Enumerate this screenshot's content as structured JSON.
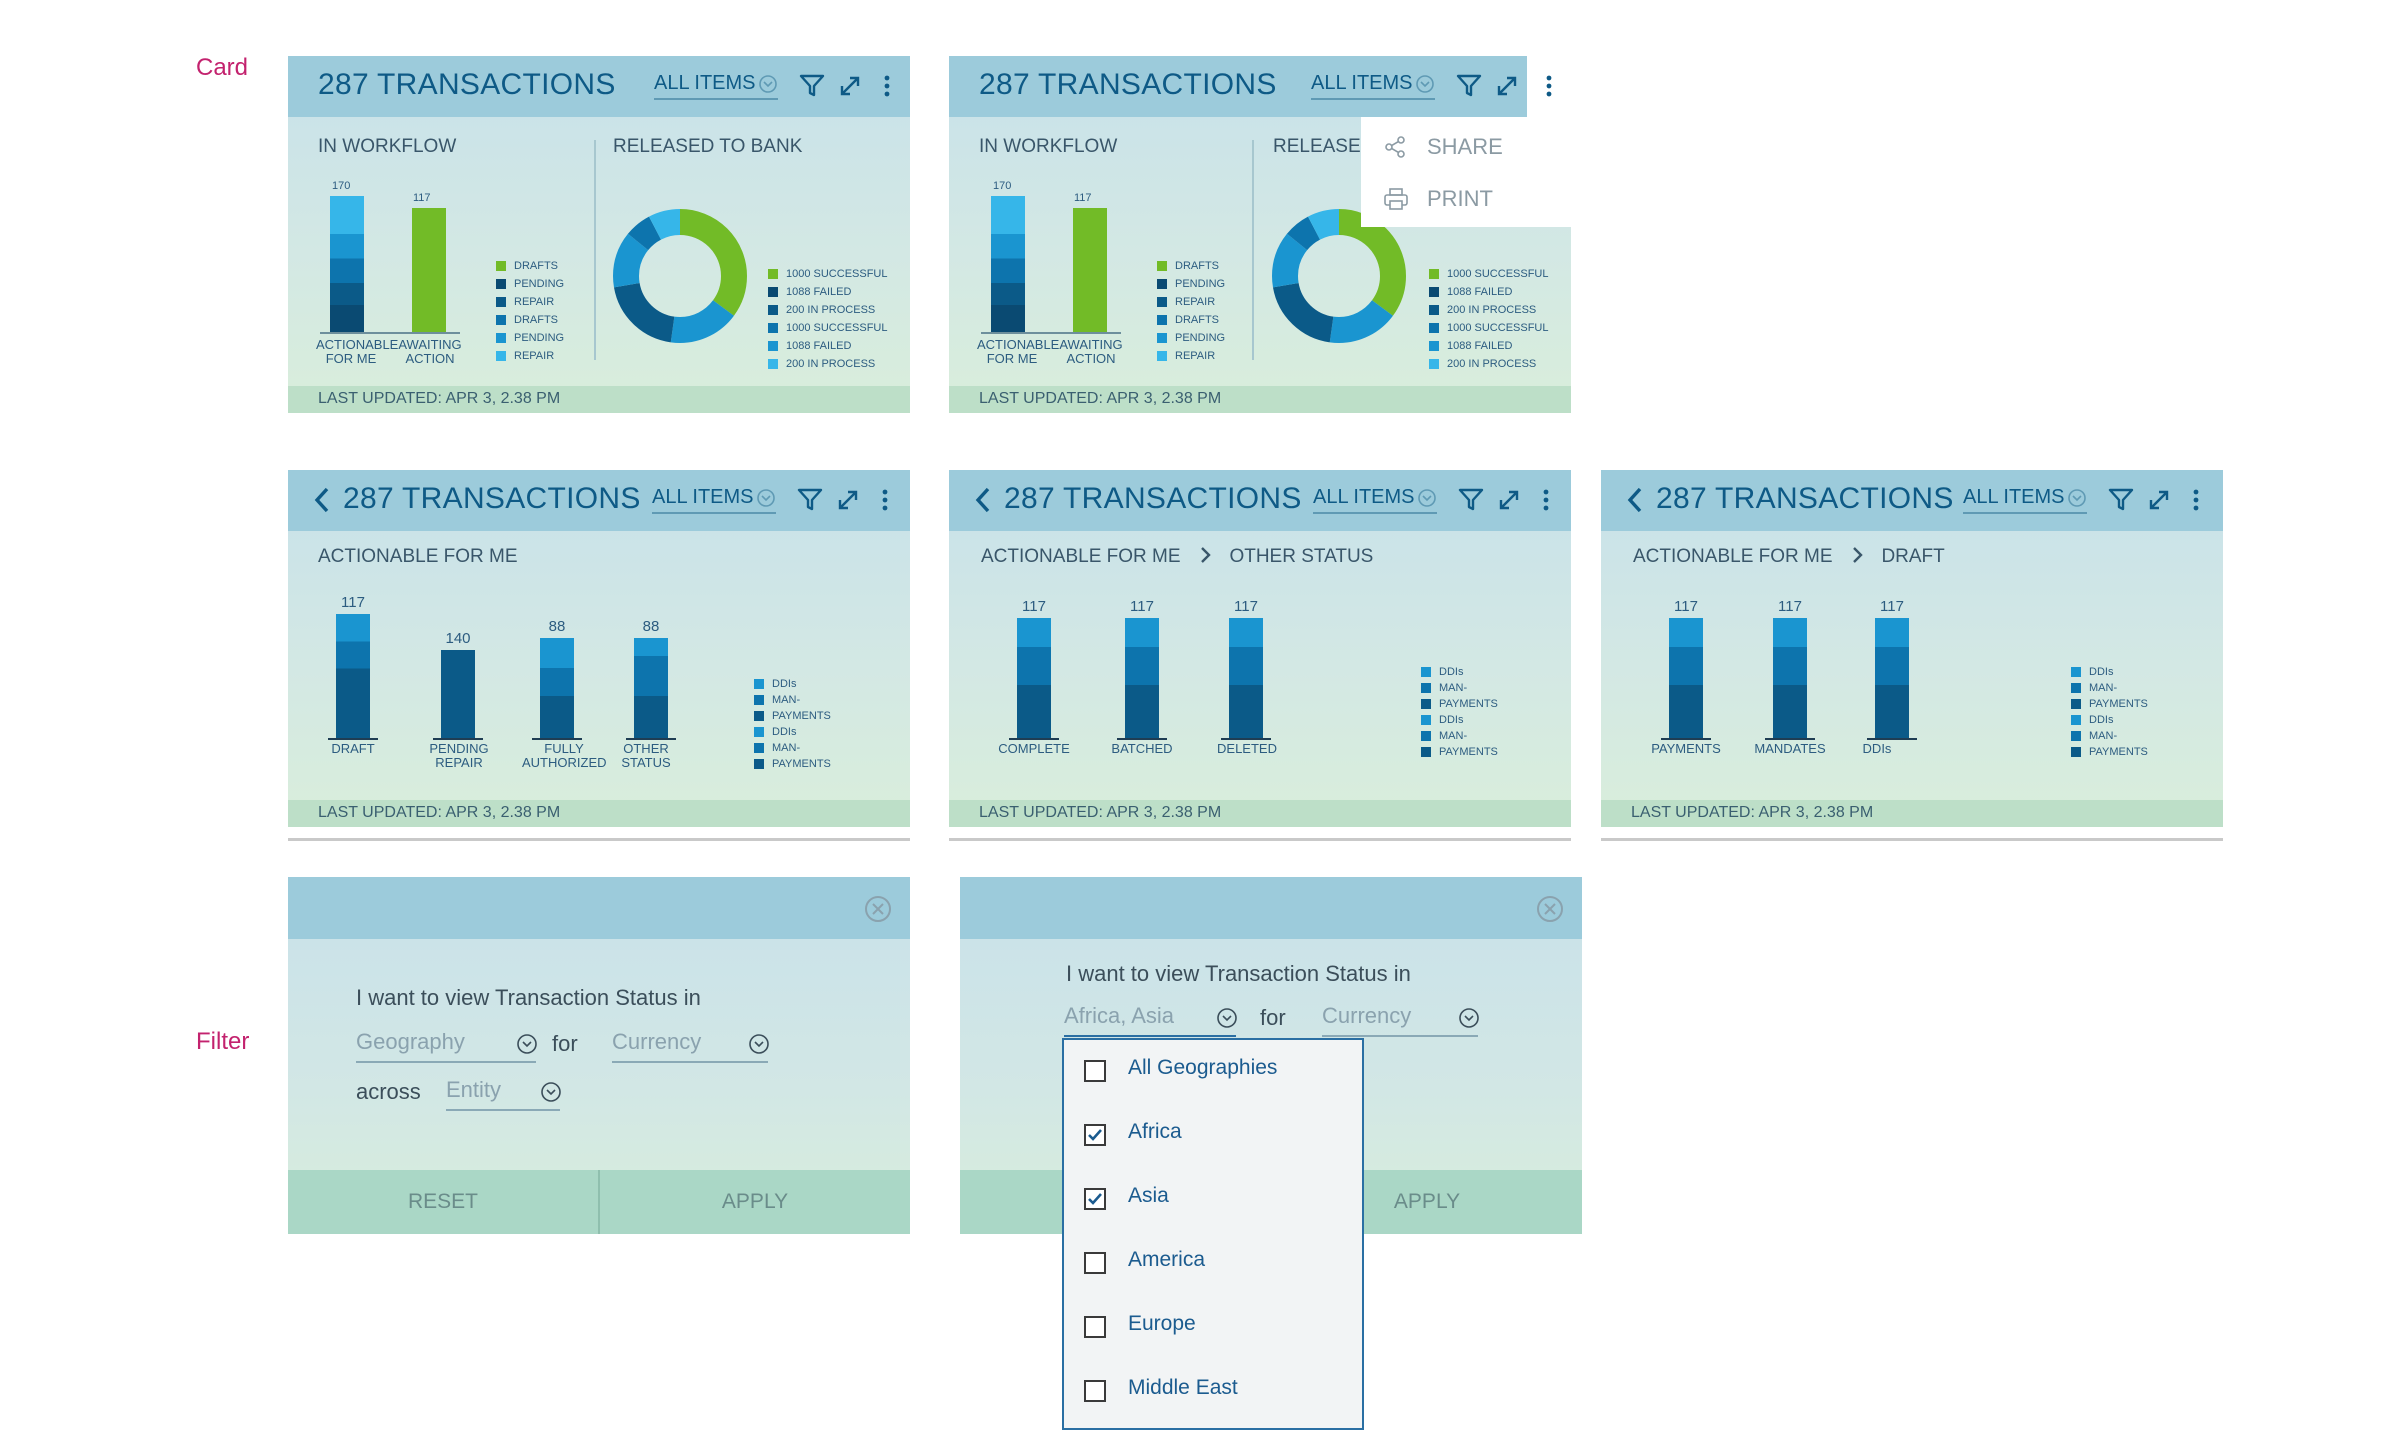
{
  "labels": {
    "card": "Card",
    "filter": "Filter"
  },
  "common": {
    "title": "287 TRANSACTIONS",
    "all_items": "ALL ITEMS",
    "last_updated": "LAST UPDATED: APR 3, 2.38 PM"
  },
  "card1": {
    "in_workflow": "IN WORKFLOW",
    "released": "RELEASED TO BANK",
    "bar_values": [
      "170",
      "117"
    ],
    "bar_cats": [
      [
        "ACTIONABLE",
        "FOR ME"
      ],
      [
        "AWAITING",
        "ACTION"
      ]
    ],
    "legend": [
      "DRAFTS",
      "PENDING",
      "REPAIR",
      "DRAFTS",
      "PENDING",
      "REPAIR"
    ],
    "donut_legend": [
      "1000 SUCCESSFUL",
      "1088 FAILED",
      "200 IN PROCESS",
      "1000 SUCCESSFUL",
      "1088 FAILED",
      "200 IN PROCESS"
    ]
  },
  "card2": {
    "released_partial": "RELEASEI",
    "menu": {
      "share": "SHARE",
      "print": "PRINT"
    }
  },
  "card3": {
    "crumb": "ACTIONABLE FOR ME",
    "bars": [
      {
        "value": "117",
        "cat": [
          "DRAFT"
        ]
      },
      {
        "value": "140",
        "cat": [
          "PENDING",
          "REPAIR"
        ]
      },
      {
        "value": "88",
        "cat": [
          "FULLY",
          "AUTHORIZED"
        ]
      },
      {
        "value": "88",
        "cat": [
          "OTHER",
          "STATUS"
        ]
      }
    ],
    "legend": [
      "DDIs",
      "MAN-",
      "PAYMENTS",
      "DDIs",
      "MAN-",
      "PAYMENTS"
    ]
  },
  "card4": {
    "crumb1": "ACTIONABLE FOR ME",
    "crumb2": "OTHER STATUS",
    "bars": [
      {
        "value": "117",
        "cat": "COMPLETE"
      },
      {
        "value": "117",
        "cat": "BATCHED"
      },
      {
        "value": "117",
        "cat": "DELETED"
      }
    ],
    "legend": [
      "DDIs",
      "MAN-",
      "PAYMENTS",
      "DDIs",
      "MAN-",
      "PAYMENTS"
    ]
  },
  "card5": {
    "crumb1": "ACTIONABLE FOR ME",
    "crumb2": "DRAFT",
    "bars": [
      {
        "value": "117",
        "cat": "PAYMENTS"
      },
      {
        "value": "117",
        "cat": "MANDATES"
      },
      {
        "value": "117",
        "cat": "DDIs"
      }
    ],
    "legend": [
      "DDIs",
      "MAN-",
      "PAYMENTS",
      "DDIs",
      "MAN-",
      "PAYMENTS"
    ]
  },
  "filter1": {
    "sentence": "I want to view Transaction Status in",
    "geography": "Geography",
    "for": "for",
    "currency": "Currency",
    "across": "across",
    "entity": "Entity",
    "reset": "RESET",
    "apply": "APPLY"
  },
  "filter2": {
    "sentence": "I want to view Transaction Status in",
    "geo_value": "Africa, Asia",
    "for": "for",
    "currency": "Currency",
    "apply": "APPLY",
    "options": [
      {
        "label": "All Geographies",
        "checked": false
      },
      {
        "label": "Africa",
        "checked": true
      },
      {
        "label": "Asia",
        "checked": true
      },
      {
        "label": "America",
        "checked": false
      },
      {
        "label": "Europe",
        "checked": false
      },
      {
        "label": "Middle East",
        "checked": false
      }
    ]
  },
  "colors": {
    "green": "#72bb27",
    "c1": "#36b6e9",
    "c2": "#1a95d0",
    "c3": "#0d74ad",
    "c4": "#0b5a88",
    "c5": "#0a4a72",
    "pink": "#c3226e"
  },
  "icons": [
    "chevron-down-icon",
    "filter-icon",
    "expand-icon",
    "more-vertical-icon",
    "back-chevron-icon",
    "share-icon",
    "print-icon",
    "close-circle-icon",
    "checkbox-checked-icon"
  ]
}
